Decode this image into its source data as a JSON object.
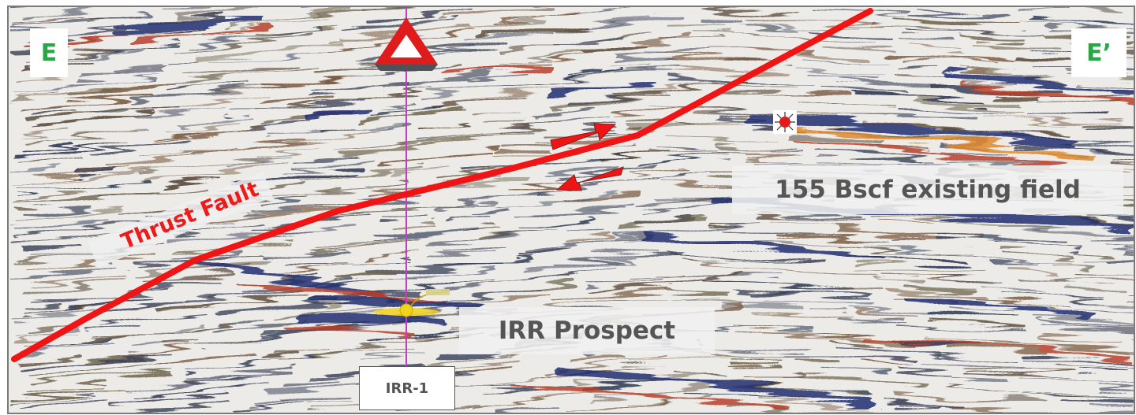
{
  "labels": {
    "left_corner": "E",
    "right_corner": "E’",
    "fault": "Thrust Fault",
    "field": "155 Bscf existing field",
    "prospect": "IRR Prospect",
    "well": "IRR-1"
  },
  "colors": {
    "fault": "#f01414",
    "corner_text": "#27a845",
    "label_text": "#555555",
    "well_line": "#c040c0",
    "reflector_blue": "#22306e",
    "reflector_red": "#b8402a",
    "reflector_orange": "#e08a30",
    "prospect_marker": "#f2d21a"
  },
  "icons": {
    "well_marker": "red-triangle-icon",
    "field_marker": "red-sun-icon",
    "slip_arrows": "red-arrow-icon"
  }
}
